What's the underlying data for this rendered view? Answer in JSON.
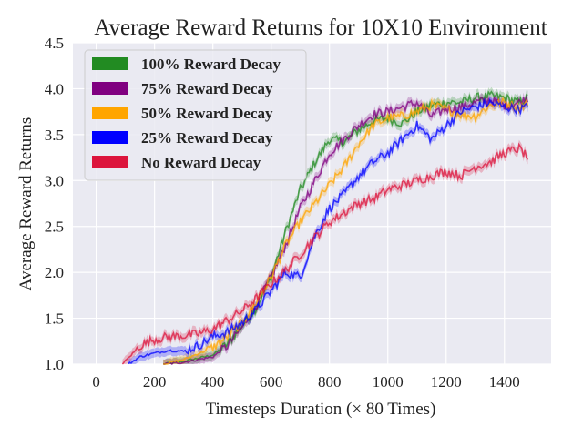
{
  "chart_data": {
    "type": "line",
    "title": "Average Reward Returns for 10X10 Environment",
    "xlabel": "Timesteps Duration (× 80 Times)",
    "ylabel": "Average Reward Returns",
    "xlim": [
      -80,
      1560
    ],
    "ylim": [
      1.0,
      4.5
    ],
    "xticks": [
      0,
      200,
      400,
      600,
      800,
      1000,
      1200,
      1400
    ],
    "yticks": [
      1.0,
      1.5,
      2.0,
      2.5,
      3.0,
      3.5,
      4.0,
      4.5
    ],
    "grid": true,
    "legend_position": "top-left",
    "series": [
      {
        "name": "100% Reward Decay",
        "color": "#228b22",
        "x": [
          230,
          300,
          400,
          450,
          500,
          550,
          600,
          650,
          700,
          750,
          800,
          850,
          900,
          950,
          1000,
          1050,
          1100,
          1150,
          1200,
          1250,
          1300,
          1350,
          1400,
          1450,
          1480
        ],
        "y": [
          1.0,
          1.03,
          1.1,
          1.22,
          1.42,
          1.62,
          1.95,
          2.45,
          2.9,
          3.2,
          3.45,
          3.42,
          3.55,
          3.65,
          3.68,
          3.62,
          3.75,
          3.82,
          3.85,
          3.85,
          3.9,
          3.92,
          3.9,
          3.85,
          3.9
        ]
      },
      {
        "name": "75% Reward Decay",
        "color": "#800080",
        "x": [
          230,
          300,
          400,
          450,
          500,
          550,
          600,
          650,
          700,
          750,
          800,
          850,
          900,
          950,
          1000,
          1050,
          1100,
          1150,
          1200,
          1250,
          1300,
          1350,
          1400,
          1450,
          1480
        ],
        "y": [
          1.0,
          1.02,
          1.08,
          1.2,
          1.4,
          1.65,
          1.95,
          2.3,
          2.7,
          3.0,
          3.3,
          3.45,
          3.6,
          3.72,
          3.75,
          3.8,
          3.85,
          3.7,
          3.78,
          3.8,
          3.85,
          3.88,
          3.82,
          3.85,
          3.9
        ]
      },
      {
        "name": "50% Reward Decay",
        "color": "#ffa500",
        "x": [
          230,
          300,
          400,
          450,
          500,
          550,
          600,
          650,
          700,
          750,
          800,
          850,
          900,
          950,
          1000,
          1050,
          1100,
          1150,
          1200,
          1250,
          1300,
          1350,
          1400,
          1450,
          1480
        ],
        "y": [
          1.0,
          1.05,
          1.18,
          1.3,
          1.45,
          1.68,
          1.95,
          2.3,
          2.55,
          2.75,
          2.95,
          3.15,
          3.4,
          3.6,
          3.68,
          3.7,
          3.75,
          3.82,
          3.78,
          3.72,
          3.7,
          3.82,
          3.85,
          3.8,
          3.85
        ]
      },
      {
        "name": "25% Reward Decay",
        "color": "#0000ff",
        "x": [
          110,
          150,
          200,
          250,
          300,
          350,
          400,
          450,
          500,
          550,
          600,
          650,
          700,
          750,
          800,
          850,
          900,
          950,
          1000,
          1050,
          1100,
          1150,
          1200,
          1250,
          1300,
          1350,
          1400,
          1450,
          1480
        ],
        "y": [
          1.0,
          1.08,
          1.12,
          1.15,
          1.14,
          1.2,
          1.3,
          1.35,
          1.45,
          1.6,
          1.8,
          2.0,
          1.95,
          2.4,
          2.7,
          2.85,
          3.05,
          3.2,
          3.3,
          3.45,
          3.6,
          3.45,
          3.6,
          3.75,
          3.8,
          3.85,
          3.8,
          3.78,
          3.8
        ]
      },
      {
        "name": "No Reward Decay",
        "color": "#dc143c",
        "x": [
          90,
          120,
          150,
          200,
          250,
          300,
          350,
          400,
          450,
          500,
          550,
          600,
          650,
          700,
          750,
          800,
          850,
          900,
          950,
          1000,
          1050,
          1100,
          1150,
          1200,
          1250,
          1300,
          1350,
          1400,
          1450,
          1480
        ],
        "y": [
          1.0,
          1.1,
          1.2,
          1.27,
          1.3,
          1.31,
          1.33,
          1.38,
          1.48,
          1.58,
          1.72,
          1.88,
          2.02,
          2.2,
          2.38,
          2.55,
          2.65,
          2.75,
          2.8,
          2.9,
          2.95,
          3.0,
          3.05,
          3.1,
          3.05,
          3.15,
          3.2,
          3.3,
          3.35,
          3.25
        ]
      }
    ]
  }
}
